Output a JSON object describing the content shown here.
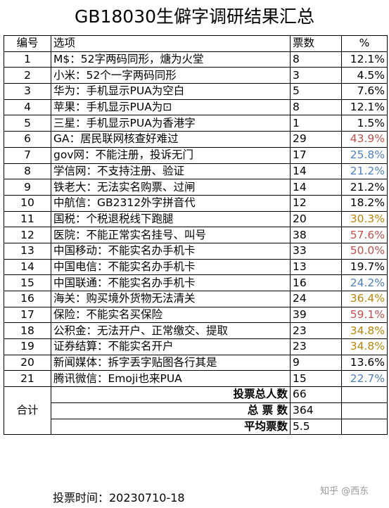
{
  "title": "GB18030生僻字调研结果汇总",
  "headers": {
    "num": "编号",
    "option": "选项",
    "votes": "票数",
    "pct": "%"
  },
  "rows": [
    {
      "num": "1",
      "option": "M$：52字两码同形，煻为火堂",
      "votes": "8",
      "pct": "12.1%",
      "color": "#000000"
    },
    {
      "num": "2",
      "option": "小米：52个一字两码同形",
      "votes": "3",
      "pct": "4.5%",
      "color": "#000000"
    },
    {
      "num": "3",
      "option": "华为：手机显示PUA为空白",
      "votes": "5",
      "pct": "7.6%",
      "color": "#000000"
    },
    {
      "num": "4",
      "option": "苹果：手机显示PUA为⊡",
      "votes": "8",
      "pct": "12.1%",
      "color": "#000000"
    },
    {
      "num": "5",
      "option": "三星：手机显示PUA为香港字",
      "votes": "1",
      "pct": "1.5%",
      "color": "#000000"
    },
    {
      "num": "6",
      "option": "GA：居民联网核查好难过",
      "votes": "29",
      "pct": "43.9%",
      "color": "#c0504d"
    },
    {
      "num": "7",
      "option": "gov网：不能注册，投诉无门",
      "votes": "17",
      "pct": "25.8%",
      "color": "#4f81bd"
    },
    {
      "num": "8",
      "option": "学信网：不支持注册、验证",
      "votes": "14",
      "pct": "21.2%",
      "color": "#4f81bd"
    },
    {
      "num": "9",
      "option": "铁老大：无法实名购票、过闸",
      "votes": "14",
      "pct": "21.2%",
      "color": "#000000"
    },
    {
      "num": "10",
      "option": "中航信：GB2312外字拼音代",
      "votes": "12",
      "pct": "18.2%",
      "color": "#000000"
    },
    {
      "num": "11",
      "option": "国税：个税退税线下跑腿",
      "votes": "20",
      "pct": "30.3%",
      "color": "#b8860b"
    },
    {
      "num": "12",
      "option": "医院：不能正常实名挂号、叫号",
      "votes": "38",
      "pct": "57.6%",
      "color": "#c0504d"
    },
    {
      "num": "13",
      "option": "中国移动：不能实名办手机卡",
      "votes": "33",
      "pct": "50.0%",
      "color": "#c0504d"
    },
    {
      "num": "14",
      "option": "中国电信：不能实名办手机卡",
      "votes": "13",
      "pct": "19.7%",
      "color": "#000000"
    },
    {
      "num": "15",
      "option": "中国联通：不能实名办手机卡",
      "votes": "16",
      "pct": "24.2%",
      "color": "#4f81bd"
    },
    {
      "num": "16",
      "option": "海关：购买境外货物无法清关",
      "votes": "24",
      "pct": "36.4%",
      "color": "#b8860b"
    },
    {
      "num": "17",
      "option": "保险：不能实名买保险",
      "votes": "39",
      "pct": "59.1%",
      "color": "#c0504d"
    },
    {
      "num": "18",
      "option": "公积金：无法开户、正常缴交、提取",
      "votes": "23",
      "pct": "34.8%",
      "color": "#b8860b"
    },
    {
      "num": "19",
      "option": "证券结算：不能实名开户",
      "votes": "23",
      "pct": "34.8%",
      "color": "#b8860b"
    },
    {
      "num": "20",
      "option": "新闻媒体：拆字丢字贴图各行其是",
      "votes": "9",
      "pct": "13.6%",
      "color": "#000000"
    },
    {
      "num": "21",
      "option": "腾讯微信：Emoji也来PUA",
      "votes": "15",
      "pct": "22.7%",
      "color": "#4f81bd"
    }
  ],
  "summary": {
    "label": "合计",
    "total_voters_label": "投票总人数",
    "total_voters": "66",
    "total_votes_label": "总 票 数",
    "total_votes": "364",
    "avg_label": "平均票数",
    "avg": "5.5"
  },
  "vote_time": "投票时间：20230710-18",
  "watermark": "知乎 @西东"
}
